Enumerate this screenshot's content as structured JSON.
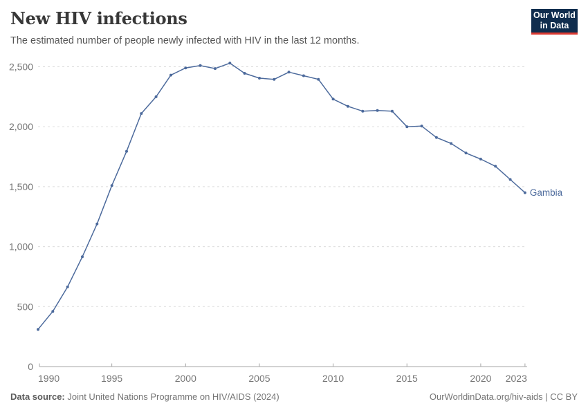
{
  "header": {
    "title": "New HIV infections",
    "subtitle": "The estimated number of people newly infected with HIV in the last 12 months.",
    "logo": {
      "line1": "Our World",
      "line2": "in Data"
    }
  },
  "chart_data": {
    "type": "line",
    "title": "New HIV infections",
    "xlabel": "",
    "ylabel": "",
    "xlim": [
      1990,
      2023
    ],
    "ylim": [
      0,
      2500
    ],
    "grid": "dashed-horizontal",
    "legend_position": "end-of-line-label",
    "x_ticks": [
      1990,
      1995,
      2000,
      2005,
      2010,
      2015,
      2020,
      2023
    ],
    "y_ticks": [
      0,
      500,
      1000,
      1500,
      2000,
      2500
    ],
    "series": [
      {
        "name": "Gambia",
        "color": "#4C6A9C",
        "x": [
          1990,
          1991,
          1992,
          1993,
          1994,
          1995,
          1996,
          1997,
          1998,
          1999,
          2000,
          2001,
          2002,
          2003,
          2004,
          2005,
          2006,
          2007,
          2008,
          2009,
          2010,
          2011,
          2012,
          2013,
          2014,
          2015,
          2016,
          2017,
          2018,
          2019,
          2020,
          2021,
          2022,
          2023
        ],
        "values": [
          310,
          460,
          665,
          915,
          1190,
          1510,
          1795,
          2110,
          2250,
          2430,
          2490,
          2510,
          2485,
          2530,
          2445,
          2405,
          2395,
          2455,
          2425,
          2395,
          2230,
          2170,
          2130,
          2135,
          2130,
          2000,
          2005,
          1910,
          1860,
          1780,
          1730,
          1670,
          1560,
          1450
        ]
      }
    ],
    "entity_label": "Gambia"
  },
  "footer": {
    "datasource_label": "Data source:",
    "datasource_text": " Joint United Nations Programme on HIV/AIDS (2024)",
    "right_text": "OurWorldinData.org/hiv-aids | CC BY"
  },
  "colors": {
    "line": "#4C6A9C",
    "entity_label": "#4C6A9C",
    "gridline": "#dcdcdc",
    "axis_line": "#a5a5a5",
    "tick_label": "#757575",
    "title": "#383838",
    "subtitle": "#555555",
    "logo_bg": "#102d4e",
    "logo_red": "#dc3a32"
  }
}
